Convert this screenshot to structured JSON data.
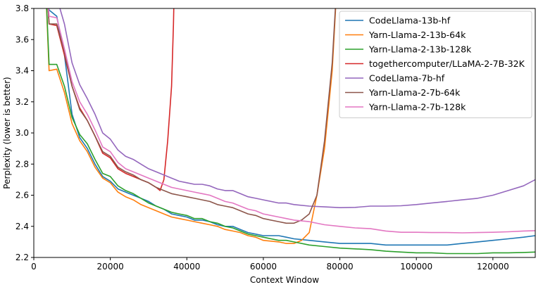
{
  "chart_data": {
    "type": "line",
    "title": "",
    "xlabel": "Context Window",
    "ylabel": "Perplexity (lower is better)",
    "xlim": [
      0,
      131072
    ],
    "ylim": [
      2.2,
      3.8
    ],
    "x_ticks": [
      0,
      20000,
      40000,
      60000,
      80000,
      100000,
      120000
    ],
    "x_tick_labels": [
      "0",
      "20000",
      "40000",
      "60000",
      "80000",
      "100000",
      "120000"
    ],
    "y_ticks": [
      2.2,
      2.4,
      2.6,
      2.8,
      3.0,
      3.2,
      3.4,
      3.6,
      3.8
    ],
    "y_tick_labels": [
      "2.2",
      "2.4",
      "2.6",
      "2.8",
      "3.0",
      "3.2",
      "3.4",
      "3.6",
      "3.8"
    ],
    "grid": false,
    "legend_position": "top-right",
    "series": [
      {
        "name": "CodeLlama-13b-hf",
        "color": "#1f77b4",
        "points": [
          [
            2500,
            4.3
          ],
          [
            4000,
            3.79
          ],
          [
            6000,
            3.75
          ],
          [
            8000,
            3.5
          ],
          [
            10000,
            3.12
          ],
          [
            12000,
            2.97
          ],
          [
            14000,
            2.9
          ],
          [
            16000,
            2.8
          ],
          [
            18000,
            2.72
          ],
          [
            20000,
            2.69
          ],
          [
            22000,
            2.64
          ],
          [
            24000,
            2.62
          ],
          [
            26000,
            2.6
          ],
          [
            28000,
            2.58
          ],
          [
            30000,
            2.56
          ],
          [
            32000,
            2.53
          ],
          [
            34000,
            2.51
          ],
          [
            36000,
            2.48
          ],
          [
            38000,
            2.47
          ],
          [
            40000,
            2.46
          ],
          [
            42000,
            2.44
          ],
          [
            44000,
            2.44
          ],
          [
            46000,
            2.43
          ],
          [
            48000,
            2.41
          ],
          [
            50000,
            2.4
          ],
          [
            52000,
            2.4
          ],
          [
            54000,
            2.38
          ],
          [
            56000,
            2.36
          ],
          [
            58000,
            2.35
          ],
          [
            60000,
            2.34
          ],
          [
            64000,
            2.34
          ],
          [
            66000,
            2.33
          ],
          [
            68000,
            2.32
          ],
          [
            72000,
            2.31
          ],
          [
            76000,
            2.3
          ],
          [
            80000,
            2.29
          ],
          [
            84000,
            2.29
          ],
          [
            88000,
            2.29
          ],
          [
            92000,
            2.28
          ],
          [
            96000,
            2.28
          ],
          [
            100000,
            2.28
          ],
          [
            104000,
            2.28
          ],
          [
            108000,
            2.28
          ],
          [
            112000,
            2.29
          ],
          [
            116000,
            2.3
          ],
          [
            120000,
            2.31
          ],
          [
            124000,
            2.32
          ],
          [
            128000,
            2.33
          ],
          [
            131072,
            2.34
          ]
        ]
      },
      {
        "name": "Yarn-Llama-2-13b-64k",
        "color": "#ff7f0e",
        "points": [
          [
            2500,
            4.3
          ],
          [
            4000,
            3.4
          ],
          [
            6000,
            3.41
          ],
          [
            8000,
            3.26
          ],
          [
            10000,
            3.06
          ],
          [
            12000,
            2.95
          ],
          [
            14000,
            2.88
          ],
          [
            16000,
            2.78
          ],
          [
            18000,
            2.71
          ],
          [
            20000,
            2.68
          ],
          [
            22000,
            2.62
          ],
          [
            24000,
            2.59
          ],
          [
            26000,
            2.57
          ],
          [
            28000,
            2.54
          ],
          [
            30000,
            2.52
          ],
          [
            32000,
            2.5
          ],
          [
            34000,
            2.48
          ],
          [
            36000,
            2.46
          ],
          [
            38000,
            2.45
          ],
          [
            40000,
            2.44
          ],
          [
            42000,
            2.43
          ],
          [
            44000,
            2.42
          ],
          [
            46000,
            2.41
          ],
          [
            48000,
            2.4
          ],
          [
            50000,
            2.38
          ],
          [
            52000,
            2.37
          ],
          [
            54000,
            2.36
          ],
          [
            56000,
            2.34
          ],
          [
            58000,
            2.33
          ],
          [
            60000,
            2.31
          ],
          [
            64000,
            2.3
          ],
          [
            66000,
            2.29
          ],
          [
            68000,
            2.29
          ],
          [
            70000,
            2.31
          ],
          [
            72000,
            2.36
          ],
          [
            74000,
            2.6
          ],
          [
            76000,
            2.9
          ],
          [
            78000,
            3.4
          ],
          [
            80000,
            4.3
          ]
        ]
      },
      {
        "name": "Yarn-Llama-2-13b-128k",
        "color": "#2ca02c",
        "points": [
          [
            2500,
            4.3
          ],
          [
            4000,
            3.44
          ],
          [
            6000,
            3.44
          ],
          [
            8000,
            3.3
          ],
          [
            10000,
            3.1
          ],
          [
            12000,
            2.99
          ],
          [
            14000,
            2.93
          ],
          [
            16000,
            2.83
          ],
          [
            18000,
            2.74
          ],
          [
            20000,
            2.72
          ],
          [
            22000,
            2.66
          ],
          [
            24000,
            2.63
          ],
          [
            26000,
            2.61
          ],
          [
            28000,
            2.58
          ],
          [
            30000,
            2.55
          ],
          [
            32000,
            2.53
          ],
          [
            34000,
            2.51
          ],
          [
            36000,
            2.49
          ],
          [
            38000,
            2.48
          ],
          [
            40000,
            2.47
          ],
          [
            42000,
            2.45
          ],
          [
            44000,
            2.45
          ],
          [
            46000,
            2.43
          ],
          [
            48000,
            2.42
          ],
          [
            50000,
            2.4
          ],
          [
            52000,
            2.39
          ],
          [
            54000,
            2.37
          ],
          [
            56000,
            2.35
          ],
          [
            58000,
            2.34
          ],
          [
            60000,
            2.33
          ],
          [
            64000,
            2.31
          ],
          [
            66000,
            2.31
          ],
          [
            68000,
            2.3
          ],
          [
            72000,
            2.28
          ],
          [
            76000,
            2.27
          ],
          [
            80000,
            2.26
          ],
          [
            84000,
            2.255
          ],
          [
            88000,
            2.25
          ],
          [
            92000,
            2.24
          ],
          [
            96000,
            2.235
          ],
          [
            100000,
            2.23
          ],
          [
            104000,
            2.23
          ],
          [
            108000,
            2.225
          ],
          [
            112000,
            2.225
          ],
          [
            116000,
            2.225
          ],
          [
            120000,
            2.23
          ],
          [
            124000,
            2.23
          ],
          [
            128000,
            2.232
          ],
          [
            131072,
            2.235
          ]
        ]
      },
      {
        "name": "togethercomputer/LLaMA-2-7B-32K",
        "color": "#d62728",
        "points": [
          [
            2500,
            4.3
          ],
          [
            4000,
            3.7
          ],
          [
            6000,
            3.69
          ],
          [
            8000,
            3.5
          ],
          [
            10000,
            3.3
          ],
          [
            12000,
            3.16
          ],
          [
            14000,
            3.08
          ],
          [
            16000,
            2.98
          ],
          [
            18000,
            2.87
          ],
          [
            20000,
            2.84
          ],
          [
            22000,
            2.77
          ],
          [
            24000,
            2.74
          ],
          [
            26000,
            2.72
          ],
          [
            28000,
            2.7
          ],
          [
            30000,
            2.68
          ],
          [
            32000,
            2.65
          ],
          [
            33000,
            2.63
          ],
          [
            34000,
            2.7
          ],
          [
            35000,
            2.95
          ],
          [
            36000,
            3.3
          ],
          [
            36500,
            3.7
          ],
          [
            37000,
            4.3
          ]
        ]
      },
      {
        "name": "CodeLlama-7b-hf",
        "color": "#9467bd",
        "points": [
          [
            2500,
            4.3
          ],
          [
            6000,
            3.87
          ],
          [
            8000,
            3.7
          ],
          [
            10000,
            3.45
          ],
          [
            12000,
            3.31
          ],
          [
            14000,
            3.22
          ],
          [
            16000,
            3.12
          ],
          [
            18000,
            3.0
          ],
          [
            20000,
            2.96
          ],
          [
            22000,
            2.89
          ],
          [
            24000,
            2.85
          ],
          [
            26000,
            2.83
          ],
          [
            28000,
            2.8
          ],
          [
            30000,
            2.77
          ],
          [
            32000,
            2.75
          ],
          [
            34000,
            2.73
          ],
          [
            36000,
            2.71
          ],
          [
            38000,
            2.69
          ],
          [
            40000,
            2.68
          ],
          [
            42000,
            2.67
          ],
          [
            44000,
            2.67
          ],
          [
            46000,
            2.66
          ],
          [
            48000,
            2.64
          ],
          [
            50000,
            2.63
          ],
          [
            52000,
            2.63
          ],
          [
            54000,
            2.61
          ],
          [
            56000,
            2.59
          ],
          [
            58000,
            2.58
          ],
          [
            60000,
            2.57
          ],
          [
            64000,
            2.55
          ],
          [
            66000,
            2.55
          ],
          [
            68000,
            2.54
          ],
          [
            72000,
            2.53
          ],
          [
            76000,
            2.525
          ],
          [
            80000,
            2.52
          ],
          [
            84000,
            2.522
          ],
          [
            88000,
            2.53
          ],
          [
            92000,
            2.53
          ],
          [
            96000,
            2.532
          ],
          [
            100000,
            2.54
          ],
          [
            104000,
            2.55
          ],
          [
            108000,
            2.56
          ],
          [
            112000,
            2.57
          ],
          [
            116000,
            2.58
          ],
          [
            120000,
            2.6
          ],
          [
            124000,
            2.63
          ],
          [
            128000,
            2.66
          ],
          [
            131072,
            2.7
          ]
        ]
      },
      {
        "name": "Yarn-Llama-2-7b-64k",
        "color": "#8c564b",
        "points": [
          [
            2500,
            4.3
          ],
          [
            4000,
            3.7
          ],
          [
            6000,
            3.7
          ],
          [
            8000,
            3.52
          ],
          [
            10000,
            3.3
          ],
          [
            12000,
            3.15
          ],
          [
            14000,
            3.08
          ],
          [
            16000,
            2.98
          ],
          [
            18000,
            2.88
          ],
          [
            20000,
            2.85
          ],
          [
            22000,
            2.78
          ],
          [
            24000,
            2.75
          ],
          [
            26000,
            2.73
          ],
          [
            28000,
            2.7
          ],
          [
            30000,
            2.68
          ],
          [
            32000,
            2.65
          ],
          [
            34000,
            2.63
          ],
          [
            36000,
            2.61
          ],
          [
            38000,
            2.6
          ],
          [
            40000,
            2.59
          ],
          [
            42000,
            2.58
          ],
          [
            44000,
            2.57
          ],
          [
            46000,
            2.56
          ],
          [
            48000,
            2.54
          ],
          [
            50000,
            2.53
          ],
          [
            52000,
            2.52
          ],
          [
            54000,
            2.5
          ],
          [
            56000,
            2.48
          ],
          [
            58000,
            2.47
          ],
          [
            60000,
            2.45
          ],
          [
            64000,
            2.43
          ],
          [
            66000,
            2.42
          ],
          [
            68000,
            2.42
          ],
          [
            70000,
            2.44
          ],
          [
            72000,
            2.48
          ],
          [
            74000,
            2.6
          ],
          [
            76000,
            2.95
          ],
          [
            78000,
            3.45
          ],
          [
            80000,
            4.3
          ]
        ]
      },
      {
        "name": "Yarn-Llama-2-7b-128k",
        "color": "#e377c2",
        "points": [
          [
            2500,
            4.3
          ],
          [
            4000,
            3.75
          ],
          [
            6000,
            3.74
          ],
          [
            8000,
            3.54
          ],
          [
            10000,
            3.33
          ],
          [
            12000,
            3.2
          ],
          [
            14000,
            3.12
          ],
          [
            16000,
            3.02
          ],
          [
            18000,
            2.91
          ],
          [
            20000,
            2.88
          ],
          [
            22000,
            2.81
          ],
          [
            24000,
            2.77
          ],
          [
            26000,
            2.75
          ],
          [
            28000,
            2.73
          ],
          [
            30000,
            2.71
          ],
          [
            32000,
            2.69
          ],
          [
            34000,
            2.67
          ],
          [
            36000,
            2.65
          ],
          [
            38000,
            2.64
          ],
          [
            40000,
            2.63
          ],
          [
            42000,
            2.62
          ],
          [
            44000,
            2.61
          ],
          [
            46000,
            2.6
          ],
          [
            48000,
            2.58
          ],
          [
            50000,
            2.56
          ],
          [
            52000,
            2.55
          ],
          [
            54000,
            2.53
          ],
          [
            56000,
            2.51
          ],
          [
            58000,
            2.5
          ],
          [
            60000,
            2.48
          ],
          [
            64000,
            2.46
          ],
          [
            66000,
            2.45
          ],
          [
            68000,
            2.44
          ],
          [
            72000,
            2.43
          ],
          [
            76000,
            2.41
          ],
          [
            80000,
            2.4
          ],
          [
            84000,
            2.39
          ],
          [
            88000,
            2.385
          ],
          [
            92000,
            2.37
          ],
          [
            96000,
            2.362
          ],
          [
            100000,
            2.362
          ],
          [
            104000,
            2.36
          ],
          [
            108000,
            2.36
          ],
          [
            112000,
            2.358
          ],
          [
            116000,
            2.36
          ],
          [
            120000,
            2.362
          ],
          [
            124000,
            2.365
          ],
          [
            128000,
            2.37
          ],
          [
            131072,
            2.372
          ]
        ]
      }
    ]
  }
}
